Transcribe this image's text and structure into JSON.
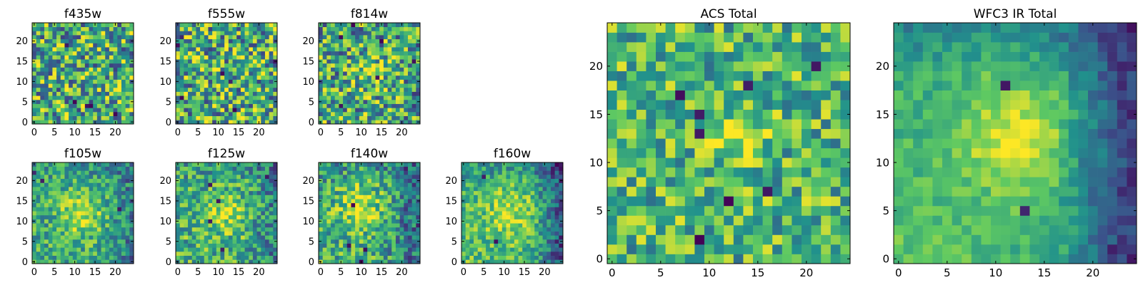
{
  "figure": {
    "colormap": "viridis",
    "colormap_stops": [
      "#440154",
      "#3b528b",
      "#21918c",
      "#5ec962",
      "#fde725"
    ]
  },
  "chart_data": [
    {
      "type": "heatmap",
      "title": "f435w",
      "grid": [
        25,
        25
      ],
      "xlim": [
        0,
        24
      ],
      "ylim": [
        0,
        24
      ],
      "xticks": [
        0,
        5,
        10,
        15,
        20
      ],
      "yticks": [
        0,
        5,
        10,
        15,
        20
      ],
      "structure": {
        "background": 0.62,
        "noise": 0.42,
        "peak": null,
        "peak_amp": 0,
        "peak_sigma": 0,
        "edge_falloff": 0,
        "dark_points": 5,
        "seed": 11
      }
    },
    {
      "type": "heatmap",
      "title": "f555w",
      "grid": [
        25,
        25
      ],
      "xlim": [
        0,
        24
      ],
      "ylim": [
        0,
        24
      ],
      "xticks": [
        0,
        5,
        10,
        15,
        20
      ],
      "yticks": [
        0,
        5,
        10,
        15,
        20
      ],
      "structure": {
        "background": 0.62,
        "noise": 0.42,
        "peak": null,
        "peak_amp": 0,
        "peak_sigma": 0,
        "edge_falloff": 0,
        "dark_points": 7,
        "seed": 23
      }
    },
    {
      "type": "heatmap",
      "title": "f814w",
      "grid": [
        25,
        25
      ],
      "xlim": [
        0,
        24
      ],
      "ylim": [
        0,
        24
      ],
      "xticks": [
        0,
        5,
        10,
        15,
        20
      ],
      "yticks": [
        0,
        5,
        10,
        15,
        20
      ],
      "structure": {
        "background": 0.6,
        "noise": 0.4,
        "peak": [
          13,
          12
        ],
        "peak_amp": 0.2,
        "peak_sigma": 3,
        "edge_falloff": 0.05,
        "dark_points": 6,
        "seed": 37
      }
    },
    {
      "type": "heatmap",
      "title": "f105w",
      "grid": [
        25,
        25
      ],
      "xlim": [
        0,
        24
      ],
      "ylim": [
        0,
        24
      ],
      "xticks": [
        0,
        5,
        10,
        15,
        20
      ],
      "yticks": [
        0,
        5,
        10,
        15,
        20
      ],
      "structure": {
        "background": 0.58,
        "noise": 0.25,
        "peak": [
          12,
          12
        ],
        "peak_amp": 0.3,
        "peak_sigma": 4,
        "edge_falloff": 0.2,
        "dark_points": 3,
        "seed": 41
      }
    },
    {
      "type": "heatmap",
      "title": "f125w",
      "grid": [
        25,
        25
      ],
      "xlim": [
        0,
        24
      ],
      "ylim": [
        0,
        24
      ],
      "xticks": [
        0,
        5,
        10,
        15,
        20
      ],
      "yticks": [
        0,
        5,
        10,
        15,
        20
      ],
      "structure": {
        "background": 0.6,
        "noise": 0.28,
        "peak": [
          12,
          12
        ],
        "peak_amp": 0.25,
        "peak_sigma": 4,
        "edge_falloff": 0.2,
        "dark_points": 5,
        "seed": 53
      }
    },
    {
      "type": "heatmap",
      "title": "f140w",
      "grid": [
        25,
        25
      ],
      "xlim": [
        0,
        24
      ],
      "ylim": [
        0,
        24
      ],
      "xticks": [
        0,
        5,
        10,
        15,
        20
      ],
      "yticks": [
        0,
        5,
        10,
        15,
        20
      ],
      "structure": {
        "background": 0.58,
        "noise": 0.28,
        "peak": [
          10,
          14
        ],
        "peak_amp": 0.28,
        "peak_sigma": 4,
        "edge_falloff": 0.3,
        "dark_points": 4,
        "seed": 67
      }
    },
    {
      "type": "heatmap",
      "title": "f160w",
      "grid": [
        25,
        25
      ],
      "xlim": [
        0,
        24
      ],
      "ylim": [
        0,
        24
      ],
      "xticks": [
        0,
        5,
        10,
        15,
        20
      ],
      "yticks": [
        0,
        5,
        10,
        15,
        20
      ],
      "structure": {
        "background": 0.6,
        "noise": 0.22,
        "peak": [
          12,
          12
        ],
        "peak_amp": 0.25,
        "peak_sigma": 5,
        "edge_falloff": 0.45,
        "dark_points": 2,
        "seed": 79
      }
    },
    {
      "type": "heatmap",
      "title": "ACS Total",
      "grid": [
        25,
        25
      ],
      "xlim": [
        0,
        24
      ],
      "ylim": [
        0,
        24
      ],
      "xticks": [
        0,
        5,
        10,
        15,
        20
      ],
      "yticks": [
        0,
        5,
        10,
        15,
        20
      ],
      "structure": {
        "background": 0.66,
        "noise": 0.3,
        "peak": [
          13,
          13
        ],
        "peak_amp": 0.25,
        "peak_sigma": 2,
        "edge_falloff": 0,
        "dark_points": 8,
        "seed": 97
      }
    },
    {
      "type": "heatmap",
      "title": "WFC3 IR Total",
      "grid": [
        25,
        25
      ],
      "xlim": [
        0,
        24
      ],
      "ylim": [
        0,
        24
      ],
      "xticks": [
        0,
        5,
        10,
        15,
        20
      ],
      "yticks": [
        0,
        5,
        10,
        15,
        20
      ],
      "structure": {
        "background": 0.6,
        "noise": 0.12,
        "peak": [
          12,
          13
        ],
        "peak_amp": 0.32,
        "peak_sigma": 4,
        "edge_falloff": 0.55,
        "dark_points": 3,
        "seed": 101
      }
    }
  ]
}
